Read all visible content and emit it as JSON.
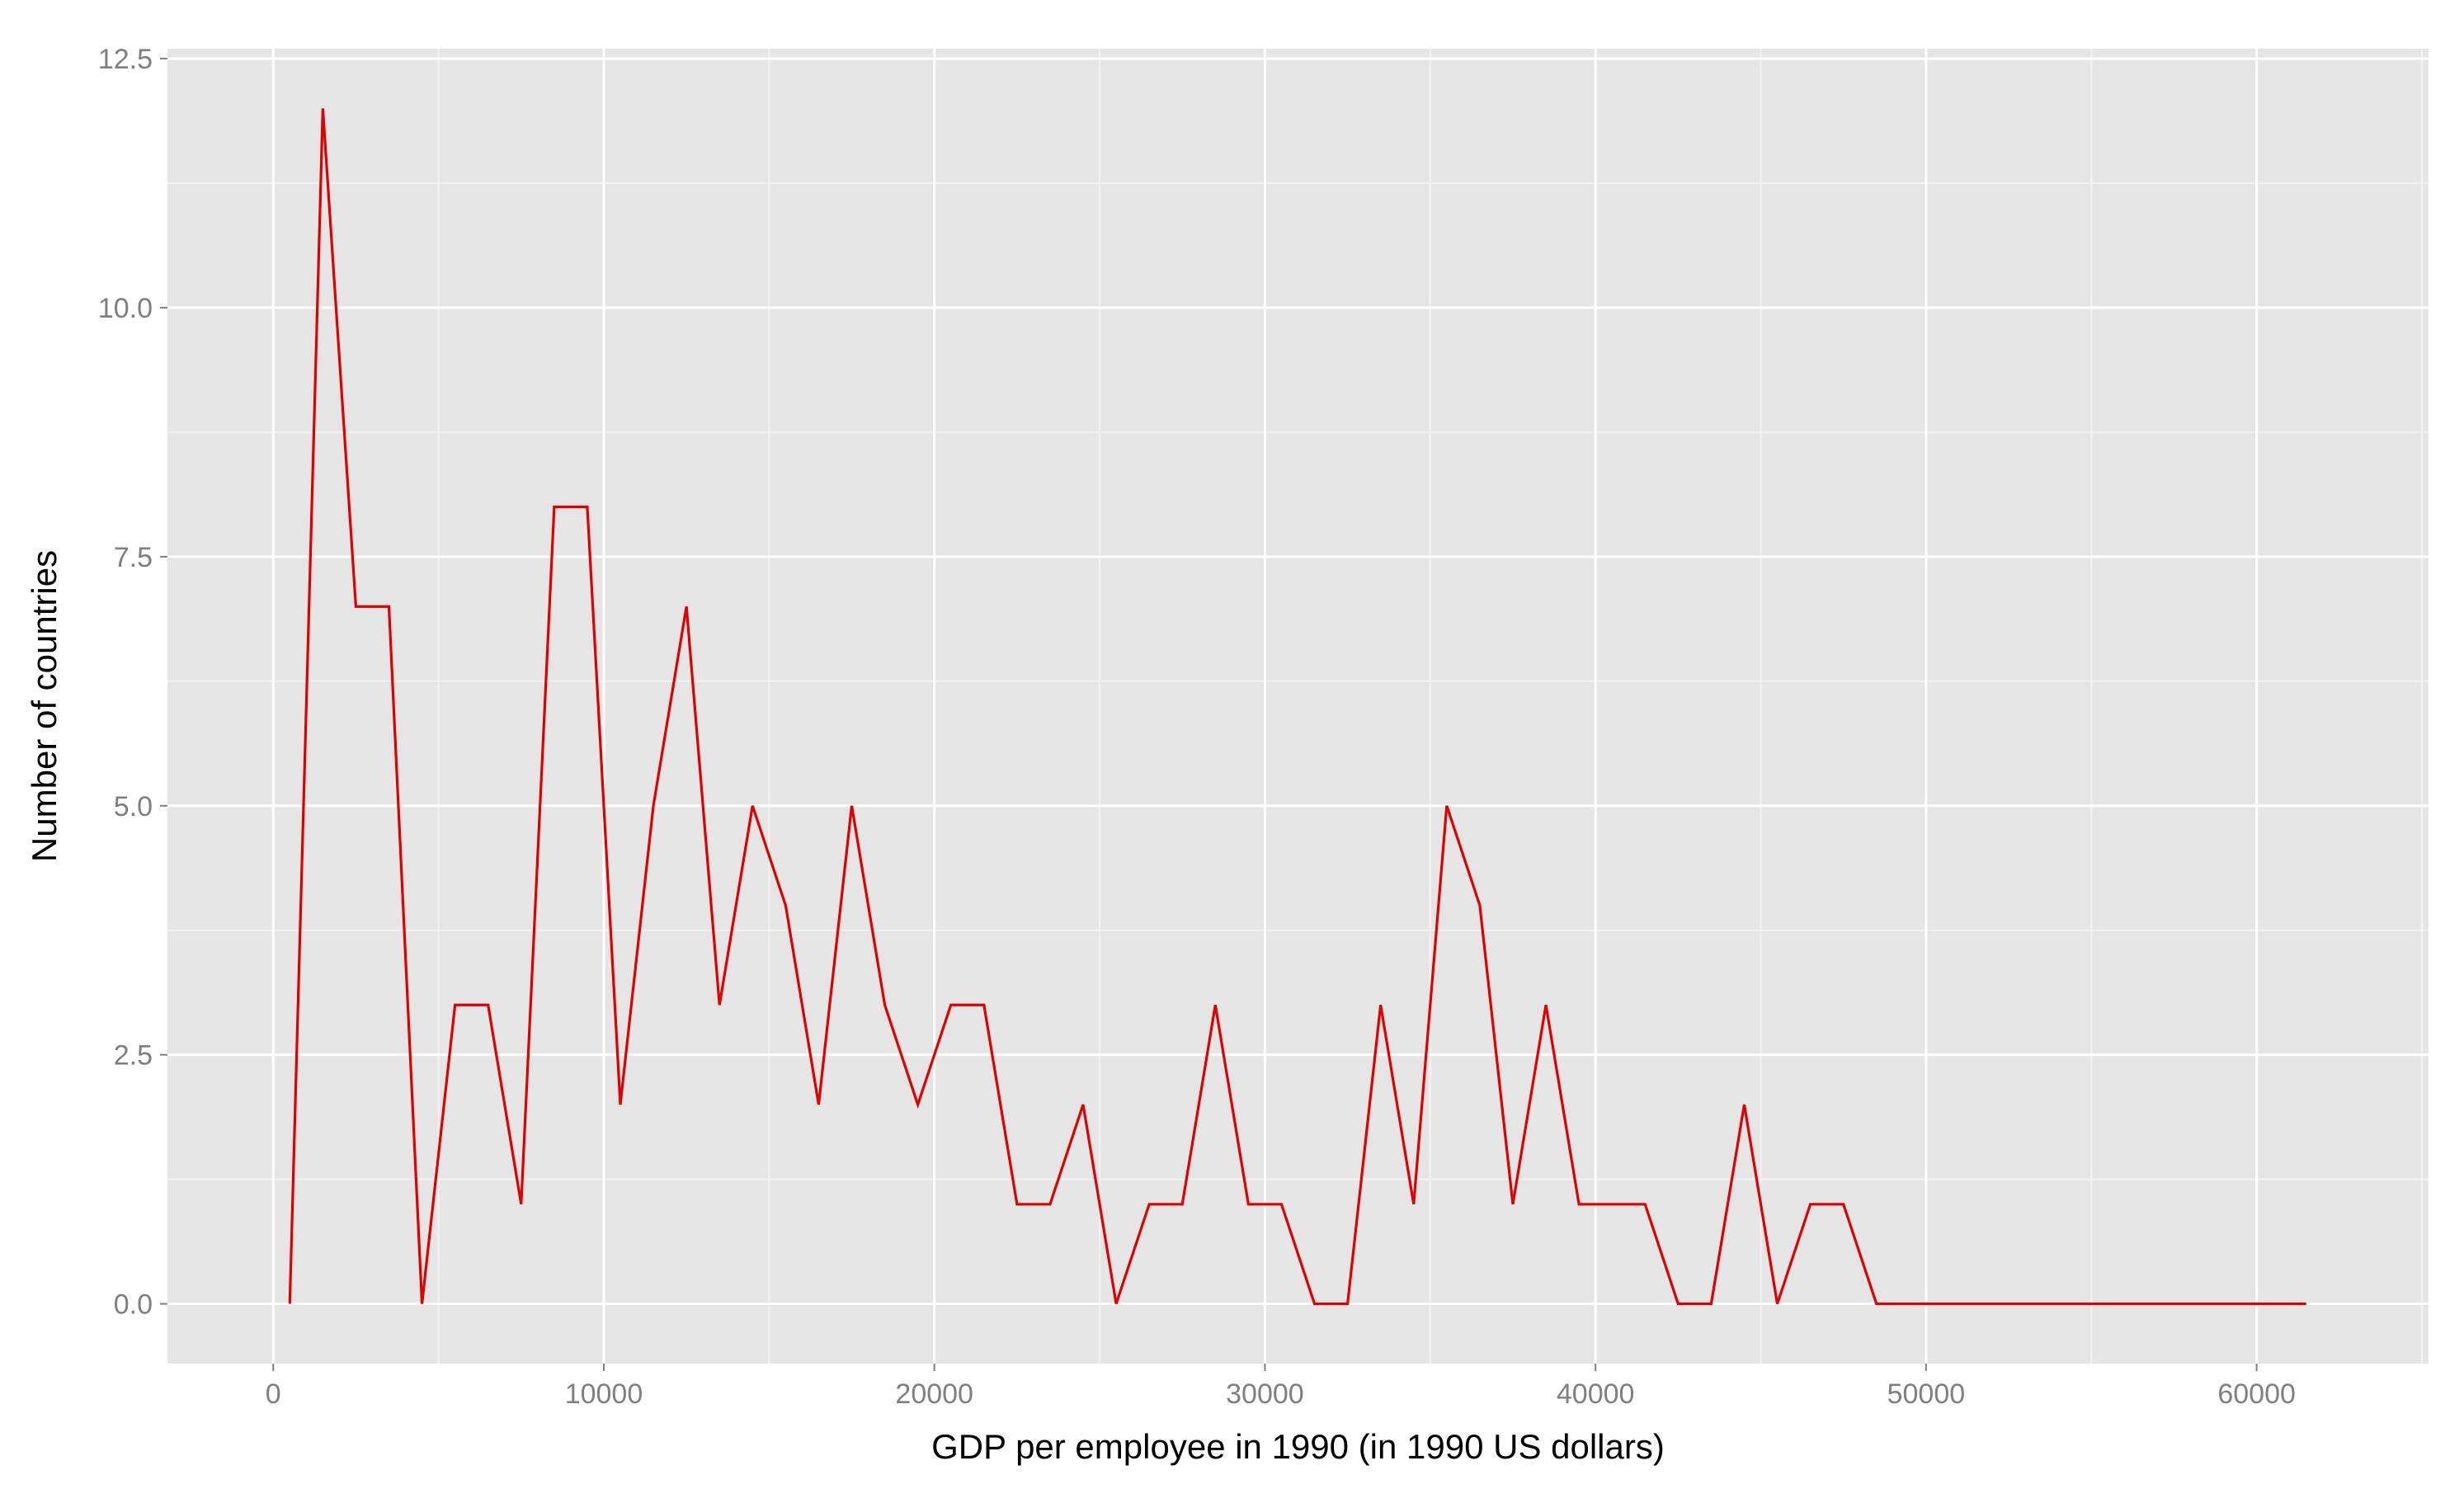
{
  "chart_data": {
    "type": "line",
    "title": "",
    "xlabel": "GDP per employee in 1990 (in 1990 US dollars)",
    "ylabel": "Number of countries",
    "xlim": [
      -3200,
      65200
    ],
    "ylim": [
      -0.6,
      12.6
    ],
    "x_ticks": [
      0,
      10000,
      20000,
      30000,
      40000,
      50000,
      60000
    ],
    "x_tick_labels": [
      "0",
      "10000",
      "20000",
      "30000",
      "40000",
      "50000",
      "60000"
    ],
    "y_ticks": [
      0,
      2.5,
      5,
      7.5,
      10,
      12.5
    ],
    "y_tick_labels": [
      "0.0",
      "2.5",
      "5.0",
      "7.5",
      "10.0",
      "12.5"
    ],
    "grid": true,
    "legend": "none",
    "colors": {
      "line": "#e00000",
      "panel_background": "#e5e5e5",
      "grid_major": "#ffffff",
      "grid_minor": "#f2f2f2",
      "tick_label": "#7f7f7f"
    },
    "series": [
      {
        "x": [
          500,
          1500,
          2500,
          3500,
          4500,
          5500,
          6500,
          7500,
          8500,
          9500,
          10500,
          11500,
          12500,
          13500,
          14500,
          15500,
          16500,
          17500,
          18500,
          19500,
          20500,
          21500,
          22500,
          23500,
          24500,
          25500,
          26500,
          27500,
          28500,
          29500,
          30500,
          31500,
          32500,
          33500,
          34500,
          35500,
          36500,
          37500,
          38500,
          39500,
          40500,
          41500,
          42500,
          43500,
          44500,
          45500,
          46500,
          47500,
          48500,
          49500,
          50500,
          51500,
          52500,
          53500,
          54500,
          55500,
          56500,
          57500,
          58500,
          59500,
          60500,
          61500
        ],
        "values": [
          0,
          12,
          7,
          7,
          0,
          3,
          3,
          1,
          8,
          8,
          2,
          5,
          7,
          3,
          5,
          4,
          2,
          5,
          3,
          2,
          3,
          3,
          1,
          1,
          2,
          0,
          1,
          1,
          3,
          1,
          1,
          0,
          0,
          3,
          1,
          5,
          4,
          1,
          3,
          1,
          1,
          1,
          0,
          0,
          2,
          0,
          1,
          1,
          0,
          0,
          0,
          0,
          0,
          0,
          0,
          0,
          0,
          0,
          0,
          0,
          0,
          0
        ]
      }
    ]
  }
}
